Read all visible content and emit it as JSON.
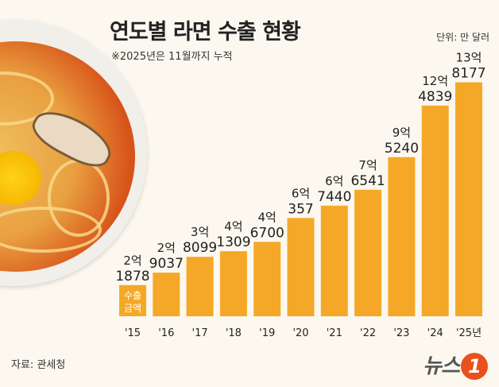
{
  "title": "연도별 라면 수출 현황",
  "subtitle": "※2025년은 11월까지 누적",
  "unit": "단위: 만 달러",
  "source": "자료: 관세청",
  "logo": "뉴스1",
  "bar_inner_label": [
    "수출",
    "금액"
  ],
  "colors": {
    "bar": "#f5a827",
    "background": "#fcf8ef",
    "accent": "#e8501e"
  },
  "chart_data": {
    "type": "bar",
    "title": "연도별 라면 수출 현황",
    "unit": "만 달러",
    "categories": [
      "'15",
      "'16",
      "'17",
      "'18",
      "'19",
      "'20",
      "'21",
      "'22",
      "'23",
      "'24",
      "'25년"
    ],
    "values": [
      21878,
      29037,
      38099,
      41309,
      46700,
      60357,
      67440,
      76541,
      95240,
      124839,
      138177
    ],
    "labels_top": [
      "2억",
      "2억",
      "3억",
      "4억",
      "4억",
      "6억",
      "6억",
      "7억",
      "9억",
      "12억",
      "13억"
    ],
    "labels_bottom": [
      "1878",
      "9037",
      "8099",
      "1309",
      "6700",
      "357",
      "7440",
      "6541",
      "5240",
      "4839",
      "8177"
    ],
    "ylim": [
      4000,
      143000
    ],
    "grid": false
  }
}
